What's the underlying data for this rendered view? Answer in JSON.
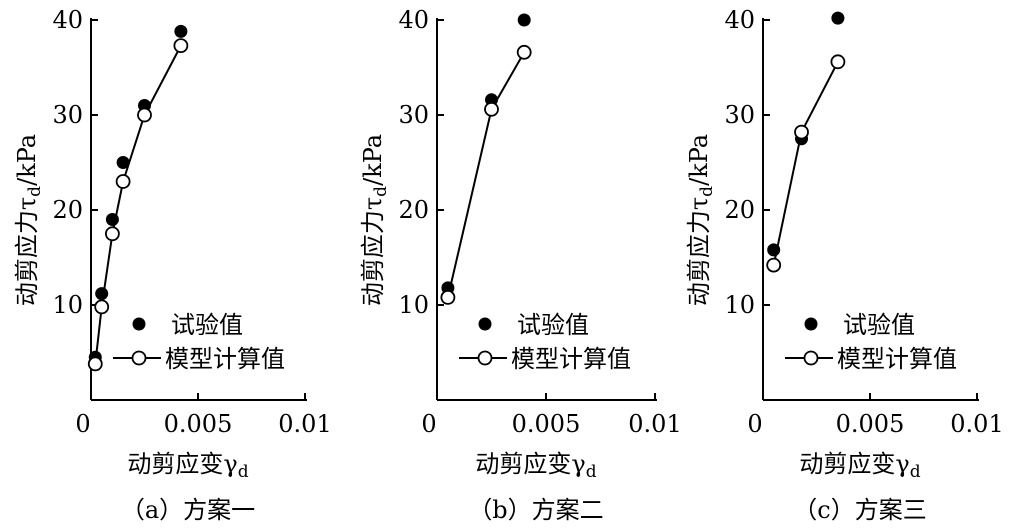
{
  "figure": {
    "legend": {
      "measured": "试验值",
      "model": "模型计算值"
    }
  },
  "chart_data": [
    {
      "type": "scatter",
      "caption": "（a）方案一",
      "xlabel": "动剪应变γd",
      "ylabel": "动剪应力τd/kPa",
      "xlim": [
        0,
        0.01
      ],
      "ylim": [
        0,
        40
      ],
      "x_ticks": [
        "0",
        "0.005",
        "0.01"
      ],
      "y_ticks": [
        "10",
        "20",
        "30",
        "40"
      ],
      "legend": {
        "position": "bottom-right"
      },
      "series": [
        {
          "name": "试验值",
          "marker": "filled-circle",
          "line": false,
          "x": [
            0.0002,
            0.0005,
            0.001,
            0.0015,
            0.0025,
            0.0042
          ],
          "y": [
            4.5,
            11.2,
            19.0,
            25.0,
            31.0,
            38.8
          ]
        },
        {
          "name": "模型计算值",
          "marker": "open-circle",
          "line": true,
          "x": [
            0.0002,
            0.0005,
            0.001,
            0.0015,
            0.0025,
            0.0042
          ],
          "y": [
            3.8,
            9.8,
            17.5,
            23.0,
            30.0,
            37.3
          ]
        }
      ]
    },
    {
      "type": "scatter",
      "caption": "（b）方案二",
      "xlabel": "动剪应变γd",
      "ylabel": "动剪应力τd/kPa",
      "xlim": [
        0,
        0.01
      ],
      "ylim": [
        0,
        40
      ],
      "x_ticks": [
        "0",
        "0.005",
        "0.01"
      ],
      "y_ticks": [
        "10",
        "20",
        "30",
        "40"
      ],
      "legend": {
        "position": "bottom-right"
      },
      "series": [
        {
          "name": "试验值",
          "marker": "filled-circle",
          "line": false,
          "x": [
            0.0005,
            0.0025,
            0.004
          ],
          "y": [
            11.8,
            31.6,
            40.0
          ]
        },
        {
          "name": "模型计算值",
          "marker": "open-circle",
          "line": true,
          "x": [
            0.0005,
            0.0025,
            0.004
          ],
          "y": [
            10.8,
            30.6,
            36.6
          ]
        }
      ]
    },
    {
      "type": "scatter",
      "caption": "（c）方案三",
      "xlabel": "动剪应变γd",
      "ylabel": "动剪应力τd/kPa",
      "xlim": [
        0,
        0.01
      ],
      "ylim": [
        0,
        40
      ],
      "x_ticks": [
        "0",
        "0.005",
        "0.01"
      ],
      "y_ticks": [
        "10",
        "20",
        "30",
        "40"
      ],
      "legend": {
        "position": "bottom-right"
      },
      "series": [
        {
          "name": "试验值",
          "marker": "filled-circle",
          "line": false,
          "x": [
            0.0005,
            0.0018,
            0.0035
          ],
          "y": [
            15.8,
            27.5,
            40.2
          ]
        },
        {
          "name": "模型计算值",
          "marker": "open-circle",
          "line": true,
          "x": [
            0.0005,
            0.0018,
            0.0035
          ],
          "y": [
            14.2,
            28.2,
            35.6
          ]
        }
      ]
    }
  ]
}
